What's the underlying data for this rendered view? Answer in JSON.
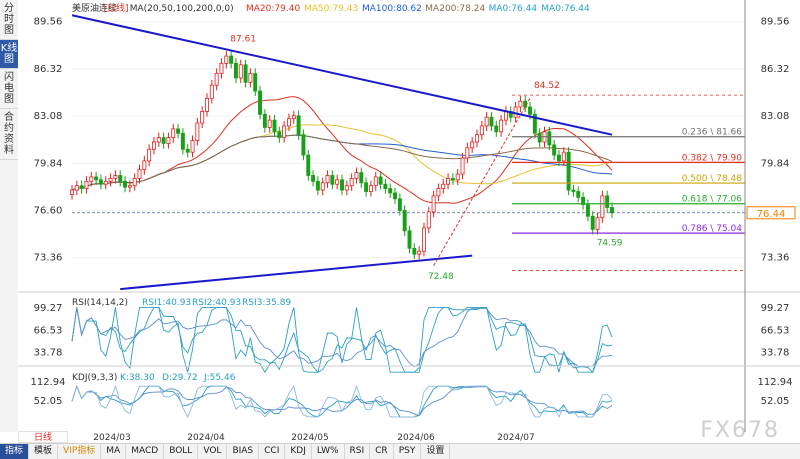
{
  "side_tabs": [
    {
      "label": "分时图",
      "active": false
    },
    {
      "label": "K线图",
      "active": true
    },
    {
      "label": "闪电图",
      "active": false
    },
    {
      "label": "合约资料",
      "active": false
    }
  ],
  "header": {
    "symbol": "美原油连续",
    "period": "[日线]",
    "ma_params": "MA(20,50,100,200,0,0)",
    "ma20": "MA20:79.40",
    "ma50": "MA50:79.43",
    "ma100": "MA100:80.62",
    "ma200": "MA200:78.24",
    "ma0a": "MA0:76.44",
    "ma0b": "MA0:76.44"
  },
  "price_axis": {
    "ticks": [
      "89.56",
      "86.32",
      "83.08",
      "79.84",
      "76.60",
      "73.36"
    ],
    "current_price": "76.44"
  },
  "annotations": {
    "high_label": "87.61",
    "swing_high_label": "84.52",
    "low_label": "72.48",
    "recent_low_label": "74.59"
  },
  "fib_levels": [
    {
      "label": "0.236 \\ 81.66",
      "value": 81.66,
      "color": "#707070"
    },
    {
      "label": "0.382 \\ 79.90",
      "value": 79.9,
      "color": "#e03020"
    },
    {
      "label": "0.500 \\ 78.48",
      "value": 78.48,
      "color": "#c9a400"
    },
    {
      "label": "0.618 \\ 77.06",
      "value": 77.06,
      "color": "#2eaa2e"
    },
    {
      "label": "0.786 \\ 75.04",
      "value": 75.04,
      "color": "#8a2be2"
    }
  ],
  "rsi": {
    "title": "RSI(14,14,2)",
    "rsi1": "RSI1:40.93",
    "rsi2": "RSI2:40.93",
    "rsi3": "RSI3:35.89",
    "ticks": [
      "99.27",
      "66.53",
      "33.78"
    ]
  },
  "kdj": {
    "title": "KDJ(9,3,3)",
    "k": "K:38.30",
    "d": "D:29.72",
    "j": "J:55.46",
    "ticks": [
      "112.94",
      "52.05"
    ]
  },
  "x_axis": {
    "labels": [
      "2024/03",
      "2024/04",
      "2024/05",
      "2024/06",
      "2024/07"
    ]
  },
  "period_button": "日线",
  "bottom_tabs": [
    {
      "label": "指标",
      "active": true
    },
    {
      "label": "模板",
      "active": false
    },
    {
      "label": "VIP指标",
      "active": false,
      "gold": true
    },
    {
      "label": "MA",
      "active": false
    },
    {
      "label": "MACD",
      "active": false
    },
    {
      "label": "BOLL",
      "active": false
    },
    {
      "label": "VOL",
      "active": false
    },
    {
      "label": "BIAS",
      "active": false
    },
    {
      "label": "CCI",
      "active": false
    },
    {
      "label": "KDJ",
      "active": false
    },
    {
      "label": "LW%",
      "active": false
    },
    {
      "label": "RSI",
      "active": false
    },
    {
      "label": "CR",
      "active": false
    },
    {
      "label": "PSY",
      "active": false
    },
    {
      "label": "设置",
      "active": false
    }
  ],
  "watermark": "FX678",
  "colors": {
    "up": "#e02020",
    "down": "#18a018",
    "ma20": "#e03020",
    "ma50": "#e8c030",
    "ma100": "#2060d0",
    "ma200": "#8a6a4a",
    "trend": "#1a1acc"
  },
  "chart_data": {
    "type": "candlestick",
    "y_range": [
      71.0,
      90.5
    ],
    "closes": [
      78.0,
      78.3,
      78.1,
      78.6,
      78.9,
      78.7,
      78.4,
      78.6,
      78.8,
      79.0,
      78.6,
      78.2,
      78.3,
      78.8,
      79.4,
      80.0,
      80.8,
      81.3,
      81.6,
      81.2,
      81.6,
      82.2,
      81.9,
      80.8,
      80.6,
      81.4,
      82.6,
      83.4,
      84.3,
      85.2,
      86.0,
      86.7,
      87.2,
      86.7,
      85.7,
      86.6,
      85.4,
      86.0,
      84.8,
      83.2,
      82.3,
      82.8,
      82.0,
      81.6,
      82.4,
      82.9,
      83.1,
      81.8,
      80.4,
      79.0,
      78.6,
      78.0,
      78.5,
      79.0,
      78.4,
      78.7,
      78.0,
      78.3,
      78.8,
      79.2,
      78.5,
      77.9,
      78.3,
      78.9,
      78.4,
      78.1,
      77.8,
      77.4,
      76.6,
      75.2,
      74.0,
      73.6,
      73.8,
      75.4,
      76.5,
      77.6,
      78.1,
      78.4,
      78.8,
      78.7,
      79.1,
      80.2,
      80.9,
      81.3,
      81.8,
      82.4,
      83.0,
      82.4,
      82.0,
      82.8,
      83.4,
      83.0,
      83.7,
      84.1,
      83.7,
      83.2,
      81.9,
      81.3,
      82.0,
      81.1,
      80.4,
      80.0,
      80.6,
      78.0,
      77.9,
      77.5,
      77.0,
      76.2,
      75.3,
      76.1,
      77.6,
      76.8,
      76.44
    ],
    "highs_lows_note": "",
    "ma20_label": "MA20",
    "trendlines": [
      {
        "from": [
          0,
          90.0
        ],
        "to": [
          112,
          81.8
        ]
      },
      {
        "from": [
          10,
          71.2
        ],
        "to": [
          83,
          73.5
        ]
      }
    ],
    "x_labels": [
      "2024/03",
      "2024/04",
      "2024/05",
      "2024/06",
      "2024/07"
    ],
    "price_ticks": [
      89.56,
      86.32,
      83.08,
      79.84,
      76.6,
      73.36
    ],
    "rsi_ticks": [
      99.27,
      66.53,
      33.78
    ],
    "kdj_ticks": [
      112.94,
      52.05
    ]
  }
}
